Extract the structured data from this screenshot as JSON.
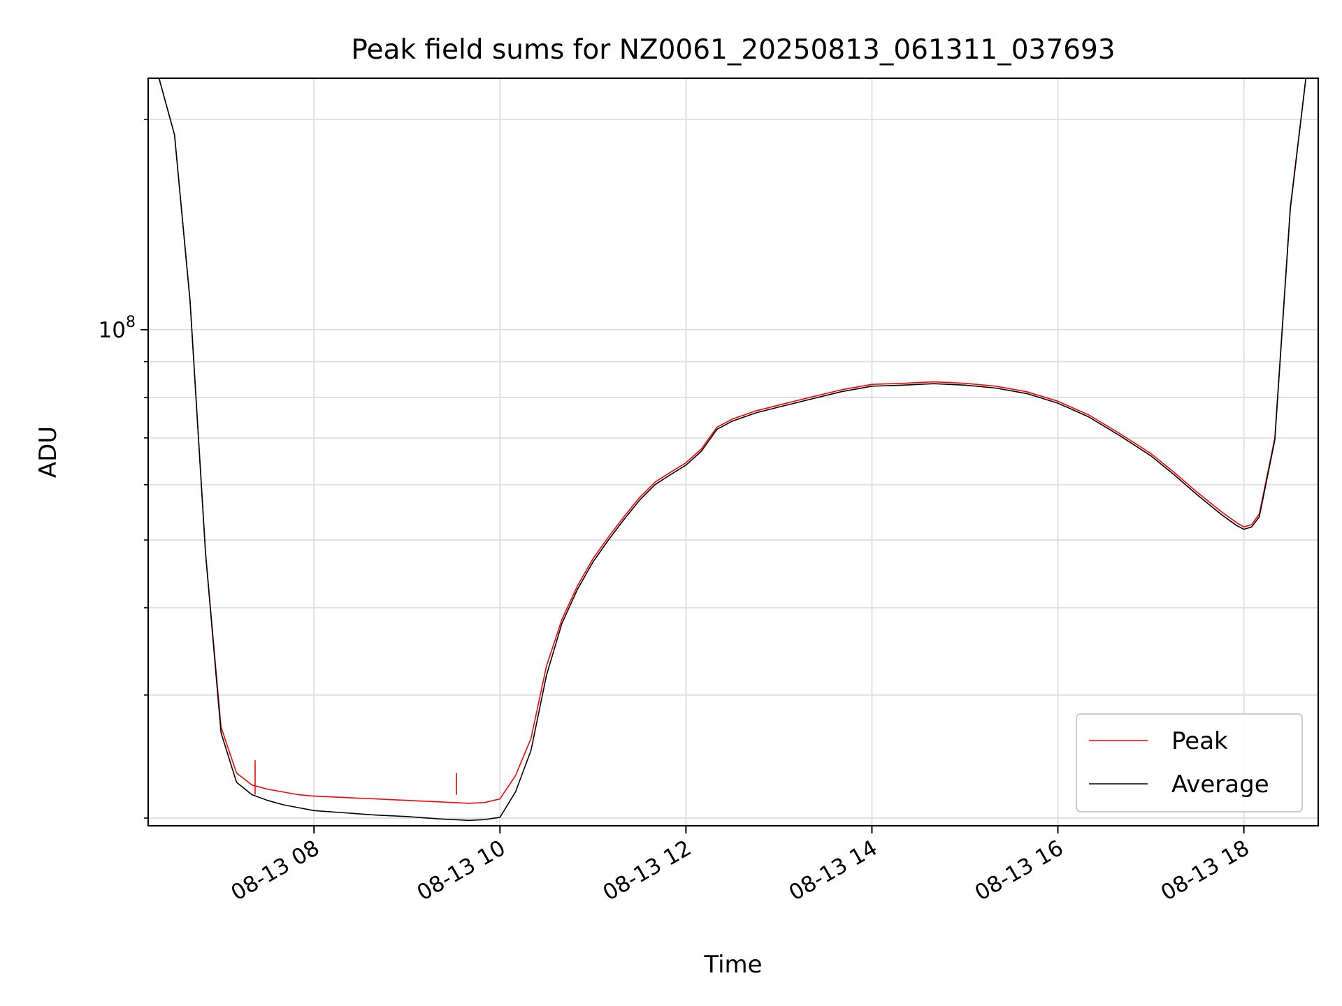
{
  "chart_data": {
    "type": "line",
    "title": "Peak field sums for NZ0061_20250813_061311_037693",
    "xlabel": "Time",
    "ylabel": "ADU",
    "y_scale": "log",
    "xlim": [
      "2025-08-13 06:13",
      "2025-08-13 18:48"
    ],
    "ylim": [
      19500000,
      229000000
    ],
    "x_ticks": [
      "08-13 08",
      "08-13 10",
      "08-13 12",
      "08-13 14",
      "08-13 16",
      "08-13 18"
    ],
    "y_major_tick": {
      "base": "10",
      "exponent": "8"
    },
    "grid": true,
    "legend_position": "lower-right",
    "series": [
      {
        "name": "Peak",
        "color": "#ff0000",
        "x": [
          "2025-08-13 06:20",
          "2025-08-13 06:30",
          "2025-08-13 06:40",
          "2025-08-13 06:50",
          "2025-08-13 07:00",
          "2025-08-13 07:10",
          "2025-08-13 07:20",
          "2025-08-13 07:30",
          "2025-08-13 07:40",
          "2025-08-13 07:50",
          "2025-08-13 08:00",
          "2025-08-13 08:20",
          "2025-08-13 08:40",
          "2025-08-13 09:00",
          "2025-08-13 09:20",
          "2025-08-13 09:30",
          "2025-08-13 09:40",
          "2025-08-13 09:50",
          "2025-08-13 10:00",
          "2025-08-13 10:10",
          "2025-08-13 10:20",
          "2025-08-13 10:30",
          "2025-08-13 10:40",
          "2025-08-13 10:50",
          "2025-08-13 11:00",
          "2025-08-13 11:10",
          "2025-08-13 11:20",
          "2025-08-13 11:30",
          "2025-08-13 11:40",
          "2025-08-13 11:50",
          "2025-08-13 12:00",
          "2025-08-13 12:10",
          "2025-08-13 12:20",
          "2025-08-13 12:30",
          "2025-08-13 12:45",
          "2025-08-13 13:00",
          "2025-08-13 13:20",
          "2025-08-13 13:40",
          "2025-08-13 14:00",
          "2025-08-13 14:20",
          "2025-08-13 14:40",
          "2025-08-13 15:00",
          "2025-08-13 15:20",
          "2025-08-13 15:40",
          "2025-08-13 16:00",
          "2025-08-13 16:20",
          "2025-08-13 16:40",
          "2025-08-13 17:00",
          "2025-08-13 17:15",
          "2025-08-13 17:30",
          "2025-08-13 17:45",
          "2025-08-13 17:55",
          "2025-08-13 18:00",
          "2025-08-13 18:05",
          "2025-08-13 18:10",
          "2025-08-13 18:20",
          "2025-08-13 18:30",
          "2025-08-13 18:40"
        ],
        "values": [
          229000000,
          190000000,
          110000000,
          48000000,
          27000000,
          23200000,
          22300000,
          22000000,
          21800000,
          21600000,
          21500000,
          21400000,
          21300000,
          21200000,
          21100000,
          21050000,
          21000000,
          21050000,
          21300000,
          23000000,
          26000000,
          33000000,
          38500000,
          43000000,
          47000000,
          50500000,
          54000000,
          57500000,
          60500000,
          62500000,
          64500000,
          67500000,
          72500000,
          74500000,
          76500000,
          78000000,
          80000000,
          82000000,
          83500000,
          83800000,
          84200000,
          83800000,
          83000000,
          81500000,
          79000000,
          75500000,
          71000000,
          66500000,
          62500000,
          58500000,
          55000000,
          53000000,
          52200000,
          52600000,
          54500000,
          70000000,
          150000000,
          229000000
        ]
      },
      {
        "name": "Average",
        "color": "#000000",
        "x": [
          "2025-08-13 06:20",
          "2025-08-13 06:30",
          "2025-08-13 06:40",
          "2025-08-13 06:50",
          "2025-08-13 07:00",
          "2025-08-13 07:10",
          "2025-08-13 07:20",
          "2025-08-13 07:30",
          "2025-08-13 07:40",
          "2025-08-13 07:50",
          "2025-08-13 08:00",
          "2025-08-13 08:20",
          "2025-08-13 08:40",
          "2025-08-13 09:00",
          "2025-08-13 09:20",
          "2025-08-13 09:30",
          "2025-08-13 09:40",
          "2025-08-13 09:50",
          "2025-08-13 10:00",
          "2025-08-13 10:10",
          "2025-08-13 10:20",
          "2025-08-13 10:30",
          "2025-08-13 10:40",
          "2025-08-13 10:50",
          "2025-08-13 11:00",
          "2025-08-13 11:10",
          "2025-08-13 11:20",
          "2025-08-13 11:30",
          "2025-08-13 11:40",
          "2025-08-13 11:50",
          "2025-08-13 12:00",
          "2025-08-13 12:10",
          "2025-08-13 12:20",
          "2025-08-13 12:30",
          "2025-08-13 12:45",
          "2025-08-13 13:00",
          "2025-08-13 13:20",
          "2025-08-13 13:40",
          "2025-08-13 14:00",
          "2025-08-13 14:20",
          "2025-08-13 14:40",
          "2025-08-13 15:00",
          "2025-08-13 15:20",
          "2025-08-13 15:40",
          "2025-08-13 16:00",
          "2025-08-13 16:20",
          "2025-08-13 16:40",
          "2025-08-13 17:00",
          "2025-08-13 17:15",
          "2025-08-13 17:30",
          "2025-08-13 17:45",
          "2025-08-13 17:55",
          "2025-08-13 18:00",
          "2025-08-13 18:05",
          "2025-08-13 18:10",
          "2025-08-13 18:20",
          "2025-08-13 18:30",
          "2025-08-13 18:40"
        ],
        "values": [
          229000000,
          190000000,
          110000000,
          48000000,
          26500000,
          22500000,
          21600000,
          21200000,
          20900000,
          20700000,
          20500000,
          20350000,
          20200000,
          20100000,
          19950000,
          19900000,
          19850000,
          19900000,
          20050000,
          21800000,
          25000000,
          32000000,
          38000000,
          42500000,
          46500000,
          50000000,
          53500000,
          57000000,
          60000000,
          62000000,
          64000000,
          67000000,
          72000000,
          74000000,
          76000000,
          77500000,
          79500000,
          81500000,
          83000000,
          83300000,
          83700000,
          83300000,
          82500000,
          81000000,
          78500000,
          75000000,
          70500000,
          66000000,
          62000000,
          58000000,
          54500000,
          52500000,
          51800000,
          52200000,
          54000000,
          69500000,
          149000000,
          229000000
        ]
      }
    ],
    "annotations": [
      {
        "series": "Peak",
        "x": "2025-08-13 07:22",
        "y": 24200000,
        "label": ""
      },
      {
        "series": "Peak",
        "x": "2025-08-13 09:32",
        "y": 23200000,
        "label": ""
      }
    ]
  }
}
